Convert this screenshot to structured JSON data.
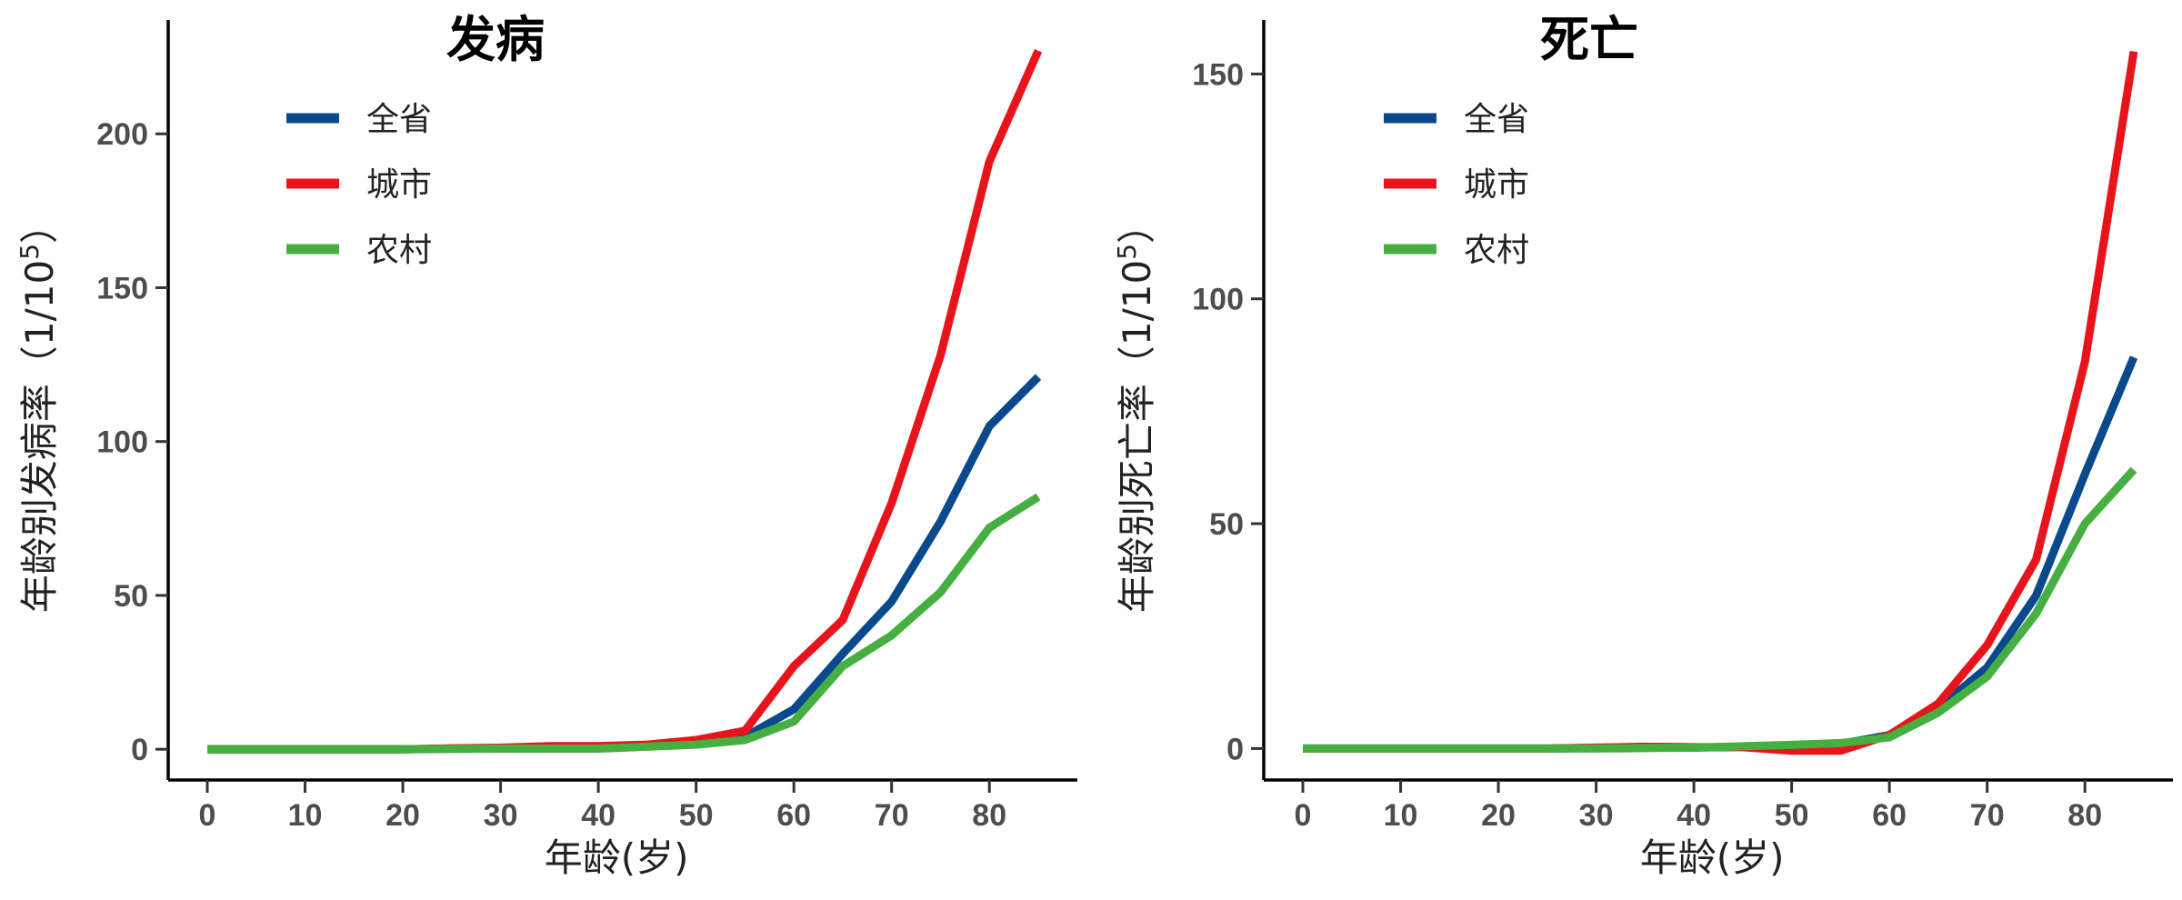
{
  "chart_data": [
    {
      "type": "line",
      "title": "发病",
      "xlabel": "年龄(岁)",
      "ylabel": "年龄别发病率（1/10",
      "ylabel_sup": "5",
      "ylabel_end": "）",
      "xlim": [
        -4,
        89
      ],
      "ylim": [
        -10,
        237
      ],
      "xticks": [
        0,
        10,
        20,
        30,
        40,
        50,
        60,
        70,
        80
      ],
      "yticks": [
        0,
        50,
        100,
        150,
        200
      ],
      "x": [
        0,
        5,
        10,
        15,
        20,
        25,
        30,
        35,
        40,
        45,
        50,
        55,
        60,
        65,
        70,
        75,
        80,
        85
      ],
      "legend_position": "top-left",
      "series": [
        {
          "name": "全省",
          "color": "#0a4a8c",
          "values": [
            0,
            0,
            0,
            0,
            0,
            0.2,
            0.3,
            0.5,
            0.5,
            1,
            2,
            4,
            13,
            31,
            48,
            74,
            105,
            121
          ]
        },
        {
          "name": "城市",
          "color": "#e8141c",
          "values": [
            0,
            0,
            0,
            0,
            0,
            0.3,
            0.5,
            1,
            1,
            1.5,
            3,
            6,
            27,
            42,
            80,
            128,
            191,
            227
          ]
        },
        {
          "name": "农村",
          "color": "#45b041",
          "values": [
            0,
            0,
            0,
            0,
            0,
            0.1,
            0.2,
            0.2,
            0.2,
            0.8,
            1.5,
            3,
            9,
            27,
            37,
            51,
            72,
            82
          ]
        }
      ]
    },
    {
      "type": "line",
      "title": "死亡",
      "xlabel": "年龄(岁)",
      "ylabel": "年龄别死亡率（1/10",
      "ylabel_sup": "5",
      "ylabel_end": "）",
      "xlim": [
        -4,
        89
      ],
      "ylim": [
        -7,
        162
      ],
      "xticks": [
        0,
        10,
        20,
        30,
        40,
        50,
        60,
        70,
        80
      ],
      "yticks": [
        0,
        50,
        100,
        150
      ],
      "x": [
        0,
        5,
        10,
        15,
        20,
        25,
        30,
        35,
        40,
        45,
        50,
        55,
        60,
        65,
        70,
        75,
        80,
        85
      ],
      "legend_position": "top-left",
      "series": [
        {
          "name": "全省",
          "color": "#0a4a8c",
          "values": [
            0,
            0,
            0,
            0,
            0,
            0,
            0.1,
            0.2,
            0.2,
            0.4,
            0.6,
            1,
            3,
            9,
            18,
            34,
            61,
            87
          ]
        },
        {
          "name": "城市",
          "color": "#e8141c",
          "values": [
            0,
            0,
            0,
            0,
            0,
            0,
            0.2,
            0.4,
            0.3,
            0.3,
            -0.5,
            -0.5,
            3,
            10,
            23,
            42,
            86,
            155
          ]
        },
        {
          "name": "农村",
          "color": "#45b041",
          "values": [
            0,
            0,
            0,
            0,
            0,
            0,
            0,
            0.1,
            0.2,
            0.5,
            0.8,
            1.2,
            2.5,
            8,
            16,
            30,
            50,
            62
          ]
        }
      ]
    }
  ]
}
